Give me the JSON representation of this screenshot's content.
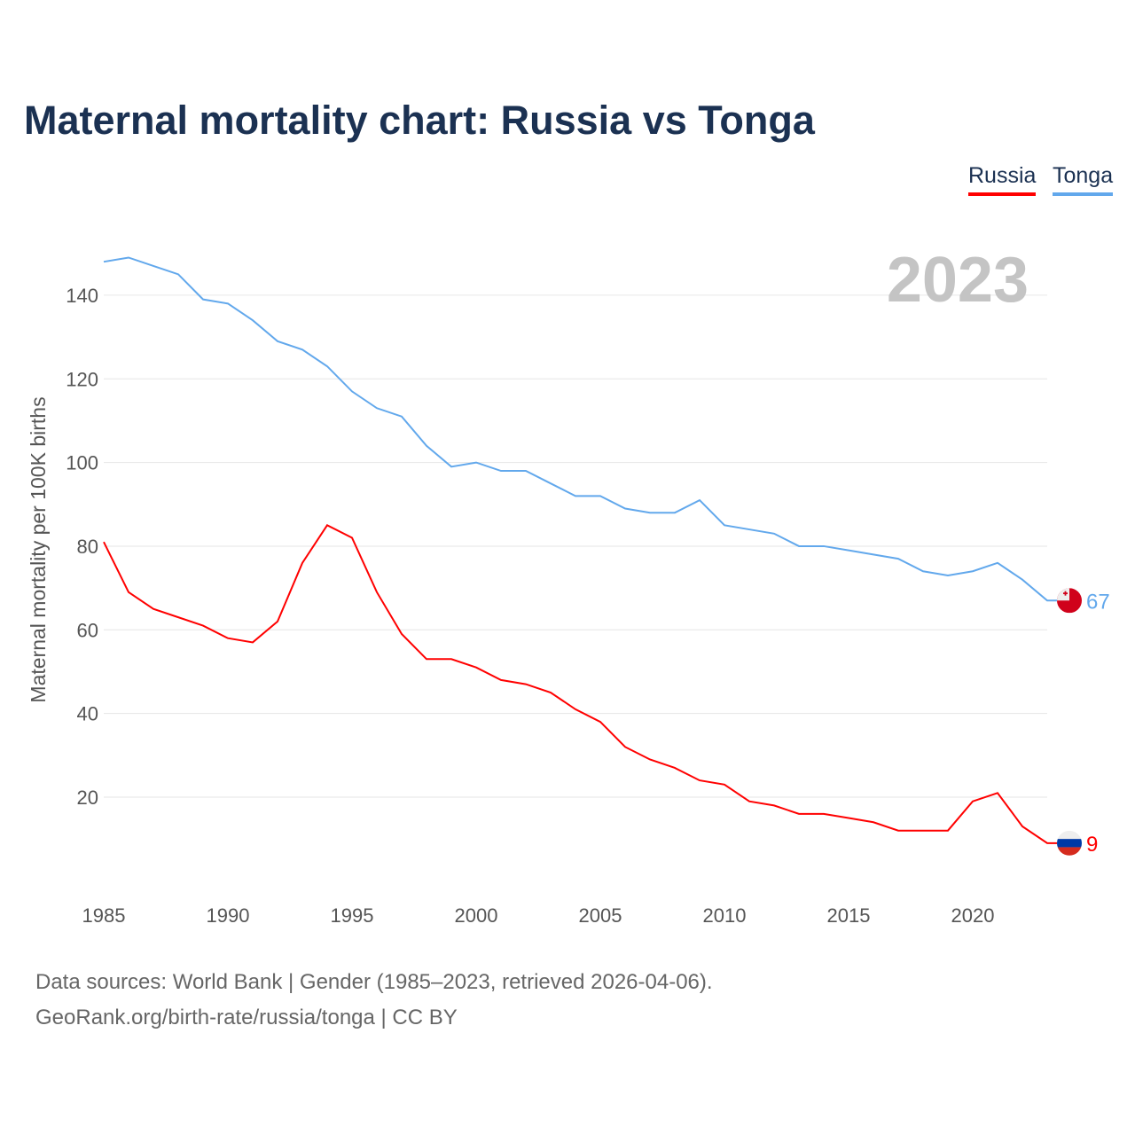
{
  "title": "Maternal mortality chart: Russia vs Tonga",
  "legend": {
    "russia": "Russia",
    "tonga": "Tonga"
  },
  "year_label": "2023",
  "source": {
    "line1": "Data sources: World Bank | Gender (1985–2023, retrieved 2026-04-06).",
    "line2": "GeoRank.org/birth-rate/russia/tonga | CC BY"
  },
  "colors": {
    "russia": "#ff0000",
    "tonga": "#62a8ec"
  },
  "chart_data": {
    "type": "line",
    "title": "Maternal mortality chart: Russia vs Tonga",
    "xlabel": "",
    "ylabel": "Maternal mortality per 100K births",
    "xlim": [
      1985,
      2023
    ],
    "ylim": [
      0,
      150
    ],
    "xticks": [
      1985,
      1990,
      1995,
      2000,
      2005,
      2010,
      2015,
      2020
    ],
    "yticks": [
      20,
      40,
      60,
      80,
      100,
      120,
      140
    ],
    "x": [
      1985,
      1986,
      1987,
      1988,
      1989,
      1990,
      1991,
      1992,
      1993,
      1994,
      1995,
      1996,
      1997,
      1998,
      1999,
      2000,
      2001,
      2002,
      2003,
      2004,
      2005,
      2006,
      2007,
      2008,
      2009,
      2010,
      2011,
      2012,
      2013,
      2014,
      2015,
      2016,
      2017,
      2018,
      2019,
      2020,
      2021,
      2022,
      2023
    ],
    "series": [
      {
        "name": "Russia",
        "end_label": "9",
        "values": [
          81,
          69,
          65,
          63,
          61,
          58,
          57,
          62,
          76,
          85,
          82,
          69,
          59,
          53,
          53,
          51,
          48,
          47,
          45,
          41,
          38,
          32,
          29,
          27,
          24,
          23,
          19,
          18,
          16,
          16,
          15,
          14,
          12,
          12,
          12,
          19,
          21,
          13,
          9
        ]
      },
      {
        "name": "Tonga",
        "end_label": "67",
        "values": [
          148,
          149,
          147,
          145,
          139,
          138,
          134,
          129,
          127,
          123,
          117,
          113,
          111,
          104,
          99,
          100,
          98,
          98,
          95,
          92,
          92,
          89,
          88,
          88,
          91,
          85,
          84,
          83,
          80,
          80,
          79,
          78,
          77,
          74,
          73,
          74,
          76,
          72,
          67
        ]
      }
    ],
    "grid": true,
    "legend_position": "top-right"
  }
}
